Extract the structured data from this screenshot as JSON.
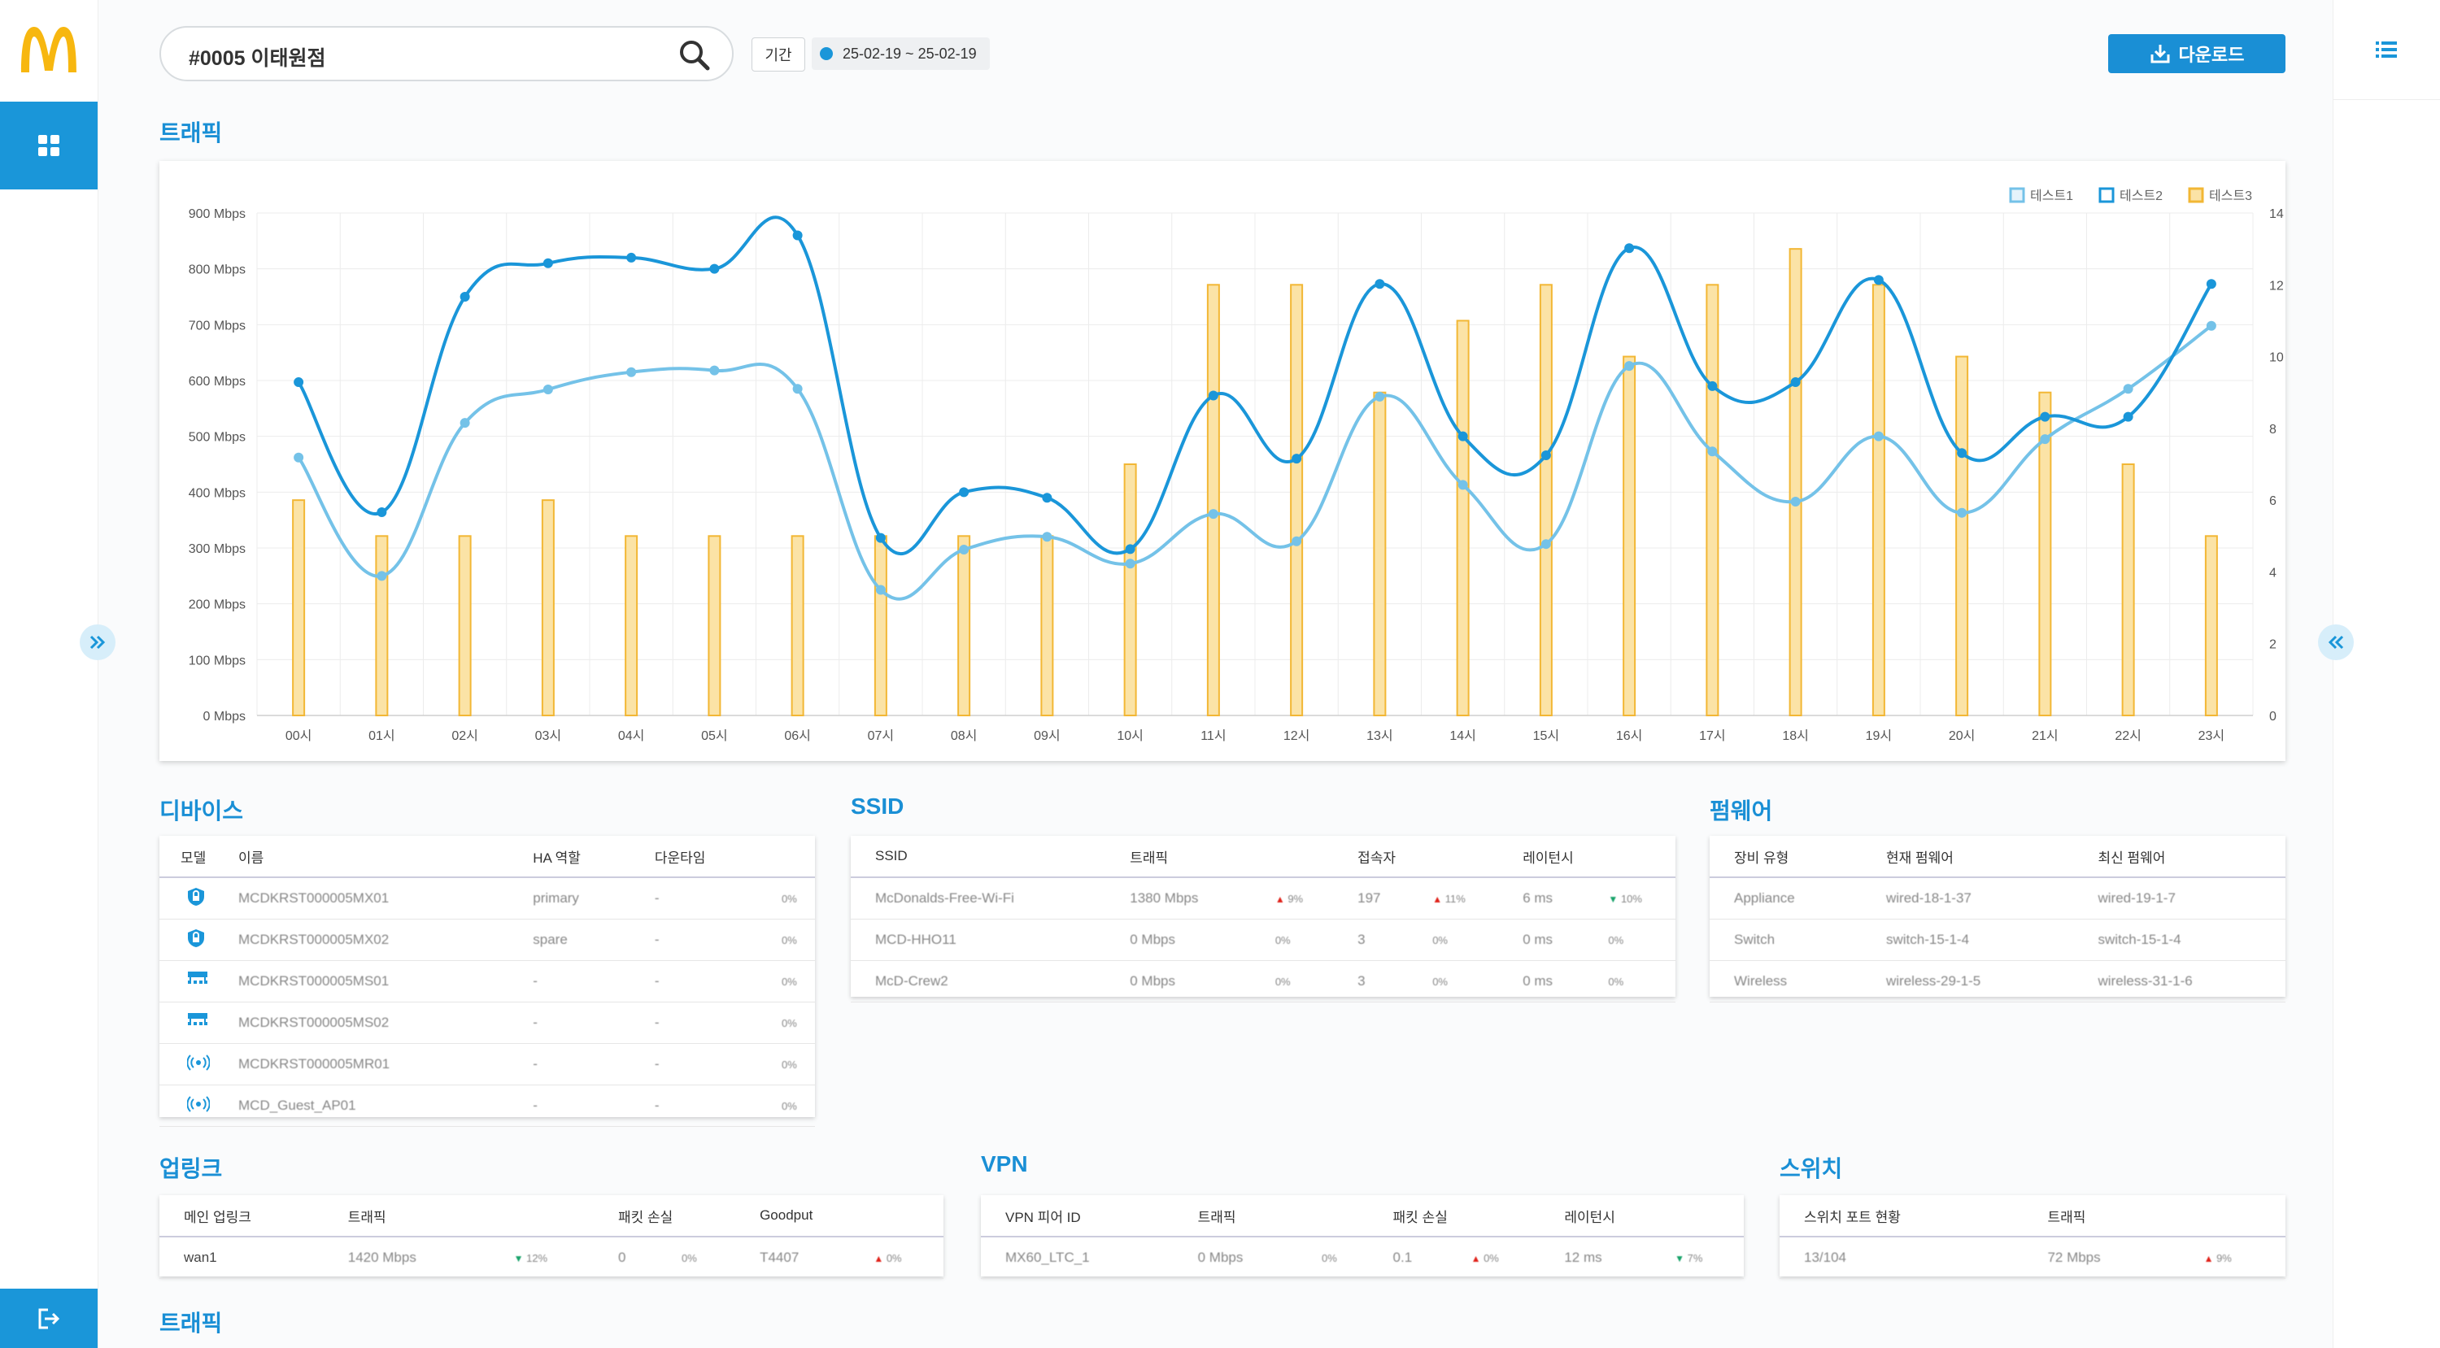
{
  "app": {
    "brand": "McDonald's"
  },
  "header": {
    "search_value": "#0005 이태원점",
    "period_label": "기간",
    "period_range": "25-02-19 ~ 25-02-19",
    "download_label": "다운로드"
  },
  "sections": {
    "traffic": "트래픽",
    "devices": "디바이스",
    "ssid": "SSID",
    "firmware": "펌웨어",
    "uplink": "업링크",
    "vpn": "VPN",
    "switch": "스위치",
    "traffic2": "트래픽"
  },
  "chart_data": {
    "type": "line",
    "categories": [
      "00시",
      "01시",
      "02시",
      "03시",
      "04시",
      "05시",
      "06시",
      "07시",
      "08시",
      "09시",
      "10시",
      "11시",
      "12시",
      "13시",
      "14시",
      "15시",
      "16시",
      "17시",
      "18시",
      "19시",
      "20시",
      "21시",
      "22시",
      "23시"
    ],
    "y_left_ticks": [
      "0 Mbps",
      "100 Mbps",
      "200 Mbps",
      "300 Mbps",
      "400 Mbps",
      "500 Mbps",
      "600 Mbps",
      "700 Mbps",
      "800 Mbps",
      "900 Mbps"
    ],
    "y_right_ticks": [
      "0",
      "2",
      "4",
      "6",
      "8",
      "10",
      "12",
      "14"
    ],
    "ylim_left": [
      0,
      900
    ],
    "ylim_right": [
      0,
      14
    ],
    "legend": [
      "테스트1",
      "테스트2",
      "테스트3"
    ],
    "legend_position": "top-right",
    "grid": true,
    "series": [
      {
        "name": "테스트1",
        "kind": "line",
        "axis": "left",
        "color": "#74c2e8",
        "values": [
          462,
          250,
          524,
          584,
          615,
          618,
          585,
          225,
          297,
          320,
          272,
          361,
          312,
          571,
          413,
          307,
          626,
          473,
          383,
          500,
          363,
          495,
          585,
          698
        ]
      },
      {
        "name": "테스트2",
        "kind": "line",
        "axis": "left",
        "color": "#1a96d9",
        "values": [
          597,
          364,
          750,
          810,
          820,
          800,
          860,
          318,
          400,
          390,
          298,
          573,
          460,
          773,
          500,
          466,
          837,
          590,
          597,
          780,
          470,
          535,
          535,
          773
        ]
      },
      {
        "name": "테스트3",
        "kind": "bar",
        "axis": "right",
        "color": "#fbe3a6",
        "stroke": "#f2b735",
        "values": [
          6,
          5,
          5,
          6,
          5,
          5,
          5,
          5,
          5,
          5,
          7,
          12,
          12,
          9,
          11,
          12,
          10,
          12,
          13,
          12,
          10,
          9,
          7,
          5
        ]
      }
    ]
  },
  "devices": {
    "headers": [
      "모델",
      "이름",
      "HA 역할",
      "다운타임"
    ],
    "rows": [
      {
        "icon": "shield-icon",
        "name": "MCDKRST000005MX01",
        "role": "primary",
        "downtime": "-",
        "pct": "0%"
      },
      {
        "icon": "shield-icon",
        "name": "MCDKRST000005MX02",
        "role": "spare",
        "downtime": "-",
        "pct": "0%"
      },
      {
        "icon": "switch-icon",
        "name": "MCDKRST000005MS01",
        "role": "-",
        "downtime": "-",
        "pct": "0%"
      },
      {
        "icon": "switch-icon",
        "name": "MCDKRST000005MS02",
        "role": "-",
        "downtime": "-",
        "pct": "0%"
      },
      {
        "icon": "wireless-icon",
        "name": "MCDKRST000005MR01",
        "role": "-",
        "downtime": "-",
        "pct": "0%"
      },
      {
        "icon": "wireless-icon",
        "name": "MCD_Guest_AP01",
        "role": "-",
        "downtime": "-",
        "pct": "0%"
      }
    ]
  },
  "ssid": {
    "headers": [
      "SSID",
      "트래픽",
      "접속자",
      "레이턴시"
    ],
    "rows": [
      {
        "ssid": "McDonalds-Free-Wi-Fi",
        "traffic": "1380 Mbps",
        "t_delta": "9%",
        "users": "197",
        "u_delta": "11%",
        "latency": "6 ms",
        "l_delta": "10%",
        "t_dir": "up",
        "u_dir": "up",
        "l_dir": "down"
      },
      {
        "ssid": "MCD-HHO11",
        "traffic": "0 Mbps",
        "t_delta": "0%",
        "users": "3",
        "u_delta": "0%",
        "latency": "0 ms",
        "l_delta": "0%",
        "t_dir": "none",
        "u_dir": "none",
        "l_dir": "none"
      },
      {
        "ssid": "McD-Crew2",
        "traffic": "0 Mbps",
        "t_delta": "0%",
        "users": "3",
        "u_delta": "0%",
        "latency": "0 ms",
        "l_delta": "0%",
        "t_dir": "none",
        "u_dir": "none",
        "l_dir": "none"
      }
    ]
  },
  "firmware": {
    "headers": [
      "장비 유형",
      "현재 펌웨어",
      "최신 펌웨어"
    ],
    "rows": [
      {
        "type": "Appliance",
        "current": "wired-18-1-37",
        "latest": "wired-19-1-7"
      },
      {
        "type": "Switch",
        "current": "switch-15-1-4",
        "latest": "switch-15-1-4"
      },
      {
        "type": "Wireless",
        "current": "wireless-29-1-5",
        "latest": "wireless-31-1-6"
      }
    ]
  },
  "uplink": {
    "headers": [
      "메인 업링크",
      "트래픽",
      "패킷 손실",
      "Goodput"
    ],
    "rows": [
      {
        "name": "wan1",
        "traffic": "1420 Mbps",
        "t_delta": "12%",
        "loss": "0",
        "loss_delta": "0%",
        "goodput": "T4407",
        "g_delta": "0%"
      }
    ]
  },
  "vpn": {
    "headers": [
      "VPN 피어 ID",
      "트래픽",
      "패킷 손실",
      "레이턴시"
    ],
    "rows": [
      {
        "peer": "MX60_LTC_1",
        "traffic": "0 Mbps",
        "t_delta": "0%",
        "loss": "0.1",
        "loss_delta": "0%",
        "latency": "12 ms",
        "l_delta": "7%"
      }
    ]
  },
  "switch": {
    "headers": [
      "스위치 포트 현황",
      "트래픽"
    ],
    "rows": [
      {
        "ports": "13/104",
        "traffic": "72 Mbps",
        "t_delta": "9%"
      }
    ]
  }
}
